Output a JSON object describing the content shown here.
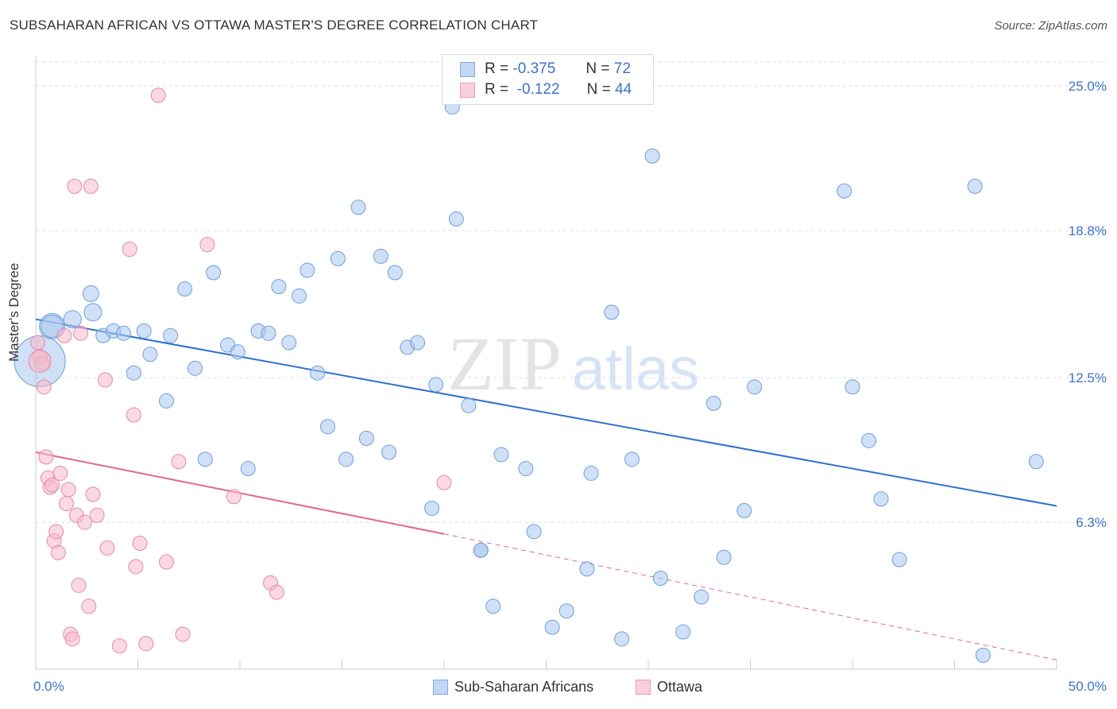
{
  "header": {
    "title": "SUBSAHARAN AFRICAN VS OTTAWA MASTER'S DEGREE CORRELATION CHART",
    "source": "Source: ZipAtlas.com"
  },
  "watermark": {
    "zip": "ZIP",
    "atlas": "atlas"
  },
  "legend": {
    "rows": [
      {
        "r_label": "R =",
        "r_value": "-0.375",
        "n_label": "N =",
        "n_value": "72",
        "color": "#a9c6ee"
      },
      {
        "r_label": "R =",
        "r_value": "-0.122",
        "n_label": "N =",
        "n_value": "44",
        "color": "#f6b9cb"
      }
    ]
  },
  "bottom_legend": {
    "items": [
      {
        "label": "Sub-Saharan Africans",
        "color": "#a9c6ee"
      },
      {
        "label": "Ottawa",
        "color": "#f6b9cb"
      }
    ]
  },
  "chart_data": {
    "type": "scatter",
    "title": "SUBSAHARAN AFRICAN VS OTTAWA MASTER'S DEGREE CORRELATION CHART",
    "xlabel": "",
    "ylabel": "Master's Degree",
    "xlim": [
      0,
      50
    ],
    "ylim": [
      0,
      26.3
    ],
    "x_tick_labels": [
      "0.0%",
      "50.0%"
    ],
    "y_ticks": [
      6.3,
      12.5,
      18.8,
      25.0
    ],
    "y_tick_labels": [
      "6.3%",
      "12.5%",
      "18.8%",
      "25.0%"
    ],
    "grid": true,
    "legend_position": "top-center",
    "series": [
      {
        "name": "Sub-Saharan Africans",
        "color": "#a9c6ee",
        "stroke": "#6d9fdc",
        "trend": {
          "x": [
            0,
            50
          ],
          "y": [
            15.0,
            7.0
          ],
          "color": "#2f6fd0"
        },
        "points": [
          [
            0.2,
            13.2
          ],
          [
            0.8,
            14.7
          ],
          [
            1.8,
            15.0
          ],
          [
            2.8,
            15.3
          ],
          [
            2.7,
            16.1
          ],
          [
            3.3,
            14.3
          ],
          [
            3.8,
            14.5
          ],
          [
            4.3,
            14.4
          ],
          [
            4.8,
            12.7
          ],
          [
            5.3,
            14.5
          ],
          [
            5.6,
            13.5
          ],
          [
            6.4,
            11.5
          ],
          [
            6.6,
            14.3
          ],
          [
            7.3,
            16.3
          ],
          [
            7.8,
            12.9
          ],
          [
            8.3,
            9.0
          ],
          [
            8.7,
            17.0
          ],
          [
            9.4,
            13.9
          ],
          [
            9.9,
            13.6
          ],
          [
            10.4,
            8.6
          ],
          [
            10.9,
            14.5
          ],
          [
            11.4,
            14.4
          ],
          [
            11.9,
            16.4
          ],
          [
            12.4,
            14.0
          ],
          [
            12.9,
            16.0
          ],
          [
            13.3,
            17.1
          ],
          [
            13.8,
            12.7
          ],
          [
            14.3,
            10.4
          ],
          [
            14.8,
            17.6
          ],
          [
            15.2,
            9.0
          ],
          [
            15.8,
            19.8
          ],
          [
            16.2,
            9.9
          ],
          [
            16.9,
            17.7
          ],
          [
            17.3,
            9.3
          ],
          [
            17.6,
            17.0
          ],
          [
            18.2,
            13.8
          ],
          [
            18.7,
            14.0
          ],
          [
            19.4,
            6.9
          ],
          [
            19.6,
            12.2
          ],
          [
            20.4,
            24.1
          ],
          [
            20.6,
            19.3
          ],
          [
            21.2,
            11.3
          ],
          [
            21.8,
            5.1
          ],
          [
            22.4,
            2.7
          ],
          [
            22.8,
            9.2
          ],
          [
            24.0,
            8.6
          ],
          [
            24.4,
            5.9
          ],
          [
            25.3,
            1.8
          ],
          [
            26.0,
            2.5
          ],
          [
            27.0,
            4.3
          ],
          [
            27.2,
            8.4
          ],
          [
            28.2,
            15.3
          ],
          [
            28.7,
            1.3
          ],
          [
            29.2,
            9.0
          ],
          [
            30.2,
            22.0
          ],
          [
            30.6,
            3.9
          ],
          [
            31.7,
            1.6
          ],
          [
            32.6,
            3.1
          ],
          [
            33.2,
            11.4
          ],
          [
            33.7,
            4.8
          ],
          [
            34.7,
            6.8
          ],
          [
            35.2,
            12.1
          ],
          [
            39.6,
            20.5
          ],
          [
            40.0,
            12.1
          ],
          [
            40.8,
            9.8
          ],
          [
            41.4,
            7.3
          ],
          [
            42.3,
            4.7
          ],
          [
            46.0,
            20.7
          ],
          [
            46.4,
            0.6
          ],
          [
            49.0,
            8.9
          ],
          [
            0.8,
            14.7
          ],
          [
            21.8,
            5.1
          ]
        ],
        "sizes": [
          32,
          16,
          11,
          11,
          10,
          9,
          9,
          9,
          9,
          9,
          9,
          9,
          9,
          9,
          9,
          9,
          9,
          9,
          9,
          9,
          9,
          9,
          9,
          9,
          9,
          9,
          9,
          9,
          9,
          9,
          9,
          9,
          9,
          9,
          9,
          9,
          9,
          9,
          9,
          9,
          9,
          9,
          9,
          9,
          9,
          9,
          9,
          9,
          9,
          9,
          9,
          9,
          9,
          9,
          9,
          9,
          9,
          9,
          9,
          9,
          9,
          9,
          9,
          9,
          9,
          9,
          9,
          9,
          9,
          9,
          14,
          9
        ]
      },
      {
        "name": "Ottawa",
        "color": "#f6b9cb",
        "stroke": "#e58aa6",
        "trend": {
          "x": [
            0,
            20
          ],
          "y": [
            9.3,
            5.8
          ],
          "color": "#e2688f",
          "dashed_x": [
            20,
            50
          ],
          "dashed_y": [
            5.8,
            0.4
          ]
        },
        "points": [
          [
            0.1,
            14.0
          ],
          [
            0.2,
            13.4
          ],
          [
            0.3,
            13.1
          ],
          [
            0.4,
            12.1
          ],
          [
            0.5,
            9.1
          ],
          [
            0.6,
            8.2
          ],
          [
            0.7,
            7.8
          ],
          [
            0.8,
            7.9
          ],
          [
            0.9,
            5.5
          ],
          [
            1.0,
            5.9
          ],
          [
            1.1,
            5.0
          ],
          [
            1.2,
            8.4
          ],
          [
            1.4,
            14.3
          ],
          [
            1.5,
            7.1
          ],
          [
            1.6,
            7.7
          ],
          [
            1.7,
            1.5
          ],
          [
            1.8,
            1.3
          ],
          [
            1.9,
            20.7
          ],
          [
            2.0,
            6.6
          ],
          [
            2.1,
            3.6
          ],
          [
            2.2,
            14.4
          ],
          [
            2.4,
            6.3
          ],
          [
            2.6,
            2.7
          ],
          [
            2.7,
            20.7
          ],
          [
            2.8,
            7.5
          ],
          [
            3.0,
            6.6
          ],
          [
            3.4,
            12.4
          ],
          [
            3.5,
            5.2
          ],
          [
            4.1,
            1.0
          ],
          [
            4.6,
            18.0
          ],
          [
            4.8,
            10.9
          ],
          [
            4.9,
            4.4
          ],
          [
            5.1,
            5.4
          ],
          [
            5.4,
            1.1
          ],
          [
            6.0,
            24.6
          ],
          [
            6.4,
            4.6
          ],
          [
            7.0,
            8.9
          ],
          [
            7.2,
            1.5
          ],
          [
            8.4,
            18.2
          ],
          [
            9.7,
            7.4
          ],
          [
            11.5,
            3.7
          ],
          [
            11.8,
            3.3
          ],
          [
            20.0,
            8.0
          ],
          [
            0.2,
            13.2
          ]
        ],
        "sizes": [
          9,
          9,
          9,
          9,
          9,
          9,
          9,
          9,
          9,
          9,
          9,
          9,
          9,
          9,
          9,
          9,
          9,
          9,
          9,
          9,
          9,
          9,
          9,
          9,
          9,
          9,
          9,
          9,
          9,
          9,
          9,
          9,
          9,
          9,
          9,
          9,
          9,
          9,
          9,
          9,
          9,
          9,
          9,
          14
        ]
      }
    ]
  }
}
